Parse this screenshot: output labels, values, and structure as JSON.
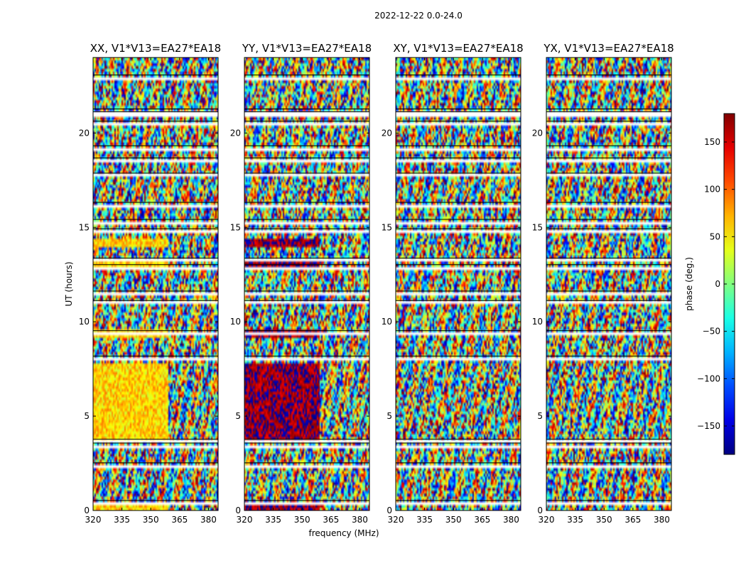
{
  "chart_data": {
    "type": "heatmap",
    "suptitle": "2022-12-22 0.0-24.0",
    "xlabel": "frequency (MHz)",
    "ylabel": "UT (hours)",
    "xlim": [
      320,
      385
    ],
    "ylim": [
      0,
      24
    ],
    "xticks": [
      320,
      335,
      350,
      365,
      380
    ],
    "yticks": [
      0,
      5,
      10,
      15,
      20
    ],
    "colormap": "jet",
    "colorbar": {
      "label": "phase (deg.)",
      "range": [
        -180,
        180
      ],
      "ticks": [
        -150,
        -100,
        -50,
        0,
        50,
        100,
        150
      ],
      "tick_labels": [
        "−150",
        "−100",
        "−50",
        "0",
        "50",
        "100",
        "150"
      ]
    },
    "flagged_ut_hours": [
      0.45,
      2.45,
      3.5,
      3.7,
      8.1,
      9.45,
      11.05,
      11.55,
      12.95,
      13.3,
      14.85,
      15.35,
      16.25,
      17.8,
      18.6,
      19.25,
      20.55,
      21.05,
      21.2,
      23.0
    ],
    "panels": [
      {
        "title": "XX, V1*V13=EA27*EA18",
        "polarization": "XX",
        "coherent_phase_deg": 60
      },
      {
        "title": "YY, V1*V13=EA27*EA18",
        "polarization": "YY",
        "coherent_phase_deg": 172
      },
      {
        "title": "XY, V1*V13=EA27*EA18",
        "polarization": "XY",
        "coherent_phase_deg": null
      },
      {
        "title": "YX, V1*V13=EA27*EA18",
        "polarization": "YX",
        "coherent_phase_deg": null
      }
    ]
  }
}
